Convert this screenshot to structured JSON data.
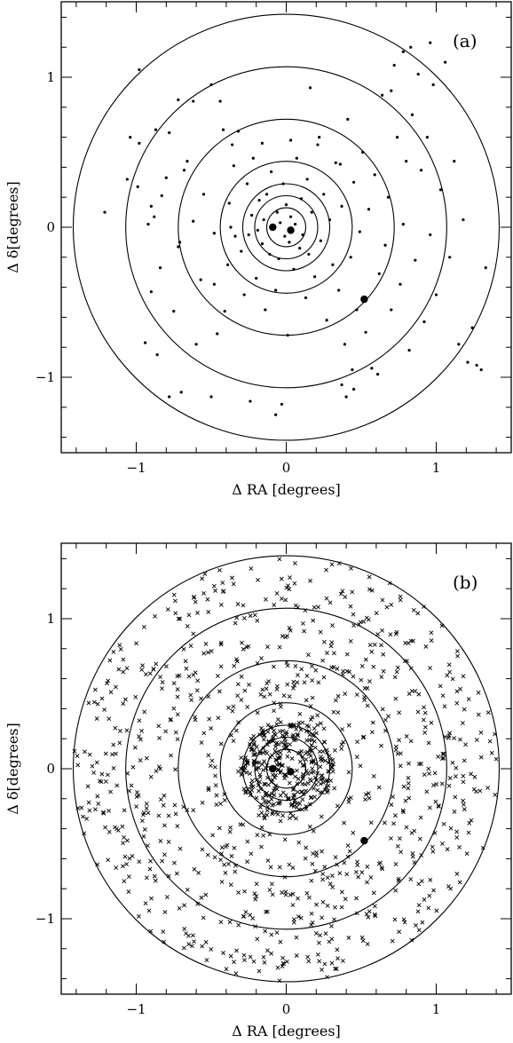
{
  "chart_data": [
    {
      "type": "scatter",
      "panel_label": "(a)",
      "xlabel": "Δ RA [degrees]",
      "ylabel": "Δ δ[degrees]",
      "xlim": [
        -1.5,
        1.5
      ],
      "ylim": [
        -1.5,
        1.5
      ],
      "xticks": [
        -1,
        0,
        1
      ],
      "yticks": [
        -1,
        0,
        1
      ],
      "xtick_labels": [
        "−1",
        "0",
        "1"
      ],
      "ytick_labels": [
        "−1",
        "0",
        "1"
      ],
      "grid": false,
      "marker": "dot",
      "circle_radii": [
        0.13,
        0.21,
        0.29,
        0.44,
        0.72,
        1.07,
        1.42
      ],
      "highlight_points": [
        [
          -0.09,
          0.0
        ],
        [
          0.03,
          -0.02
        ],
        [
          0.52,
          -0.48
        ]
      ],
      "points": [
        [
          -1.21,
          0.1
        ],
        [
          -1.06,
          0.32
        ],
        [
          -1.04,
          0.6
        ],
        [
          -0.99,
          0.27
        ],
        [
          -0.98,
          0.56
        ],
        [
          -0.98,
          1.05
        ],
        [
          -0.94,
          -0.77
        ],
        [
          -0.92,
          0.02
        ],
        [
          -0.9,
          -0.43
        ],
        [
          -0.9,
          0.14
        ],
        [
          -0.88,
          0.07
        ],
        [
          -0.87,
          0.65
        ],
        [
          -0.86,
          -0.85
        ],
        [
          -0.84,
          -0.27
        ],
        [
          -0.83,
          0.21
        ],
        [
          -0.8,
          0.33
        ],
        [
          -0.78,
          0.63
        ],
        [
          -0.75,
          -0.56
        ],
        [
          -0.72,
          -0.13
        ],
        [
          -0.71,
          -0.1
        ],
        [
          -0.7,
          -1.1
        ],
        [
          -0.68,
          0.38
        ],
        [
          -0.66,
          0.44
        ],
        [
          -0.62,
          0.04
        ],
        [
          -0.6,
          -0.78
        ],
        [
          -0.57,
          -0.35
        ],
        [
          -0.55,
          0.22
        ],
        [
          -0.5,
          -1.13
        ],
        [
          -0.48,
          -0.38
        ],
        [
          -0.46,
          -0.71
        ],
        [
          -0.44,
          0.84
        ],
        [
          -0.42,
          0.65
        ],
        [
          -0.41,
          -0.56
        ],
        [
          -0.39,
          -0.25
        ],
        [
          -0.38,
          0.16
        ],
        [
          -0.37,
          0.0
        ],
        [
          -0.35,
          0.41
        ],
        [
          -0.34,
          -0.06
        ],
        [
          -0.32,
          0.64
        ],
        [
          -0.3,
          -0.16
        ],
        [
          -0.28,
          -0.45
        ],
        [
          -0.26,
          0.29
        ],
        [
          -0.25,
          -0.05
        ],
        [
          -0.23,
          0.08
        ],
        [
          -0.22,
          0.46
        ],
        [
          -0.2,
          -0.34
        ],
        [
          -0.19,
          -0.02
        ],
        [
          -0.18,
          0.18
        ],
        [
          -0.16,
          -0.11
        ],
        [
          -0.15,
          0.05
        ],
        [
          -0.14,
          -0.55
        ],
        [
          -0.13,
          0.22
        ],
        [
          -0.11,
          -0.18
        ],
        [
          -0.1,
          0.37
        ],
        [
          -0.09,
          -0.01
        ],
        [
          -0.07,
          -0.42
        ],
        [
          -0.06,
          0.1
        ],
        [
          -0.05,
          -0.21
        ],
        [
          -0.04,
          0.03
        ],
        [
          -0.02,
          0.29
        ],
        [
          -0.01,
          -0.06
        ],
        [
          0.0,
          0.15
        ],
        [
          0.01,
          -0.72
        ],
        [
          0.02,
          -0.1
        ],
        [
          0.03,
          0.07
        ],
        [
          0.05,
          -0.28
        ],
        [
          0.06,
          0.02
        ],
        [
          0.07,
          0.46
        ],
        [
          0.09,
          -0.14
        ],
        [
          0.1,
          0.19
        ],
        [
          0.11,
          -0.05
        ],
        [
          0.13,
          -0.47
        ],
        [
          0.14,
          0.32
        ],
        [
          0.15,
          -0.18
        ],
        [
          0.17,
          0.1
        ],
        [
          0.19,
          -0.33
        ],
        [
          0.21,
          0.55
        ],
        [
          0.23,
          -0.09
        ],
        [
          0.25,
          0.22
        ],
        [
          0.27,
          -0.62
        ],
        [
          0.29,
          0.05
        ],
        [
          0.31,
          -0.25
        ],
        [
          0.33,
          0.43
        ],
        [
          0.35,
          -0.42
        ],
        [
          0.37,
          0.14
        ],
        [
          0.39,
          -0.78
        ],
        [
          0.41,
          0.72
        ],
        [
          0.43,
          -0.2
        ],
        [
          0.45,
          0.3
        ],
        [
          0.47,
          -0.55
        ],
        [
          0.49,
          -0.03
        ],
        [
          0.51,
          0.5
        ],
        [
          0.53,
          -0.7
        ],
        [
          0.55,
          0.12
        ],
        [
          0.57,
          -0.94
        ],
        [
          0.59,
          0.35
        ],
        [
          0.62,
          -0.31
        ],
        [
          0.64,
          0.88
        ],
        [
          0.66,
          -0.12
        ],
        [
          0.68,
          0.2
        ],
        [
          0.7,
          -0.55
        ],
        [
          0.72,
          1.08
        ],
        [
          0.74,
          0.6
        ],
        [
          0.76,
          -0.38
        ],
        [
          0.78,
          0.02
        ],
        [
          0.8,
          0.44
        ],
        [
          0.82,
          -0.82
        ],
        [
          0.84,
          0.75
        ],
        [
          0.86,
          -0.22
        ],
        [
          0.88,
          1.02
        ],
        [
          0.9,
          0.38
        ],
        [
          0.92,
          -0.63
        ],
        [
          0.94,
          0.6
        ],
        [
          0.96,
          -0.05
        ],
        [
          0.98,
          0.95
        ],
        [
          1.0,
          -0.45
        ],
        [
          1.03,
          0.25
        ],
        [
          1.06,
          1.1
        ],
        [
          1.09,
          -0.2
        ],
        [
          1.12,
          0.44
        ],
        [
          1.15,
          -0.78
        ],
        [
          1.18,
          0.05
        ],
        [
          1.21,
          -0.9
        ],
        [
          1.24,
          -0.67
        ],
        [
          1.27,
          -0.92
        ],
        [
          1.3,
          -0.95
        ],
        [
          1.33,
          -0.27
        ],
        [
          -0.78,
          -1.13
        ],
        [
          0.45,
          -1.08
        ],
        [
          0.37,
          -1.05
        ],
        [
          -0.03,
          -1.18
        ],
        [
          -0.07,
          -1.25
        ],
        [
          -0.24,
          -1.16
        ],
        [
          0.61,
          -0.98
        ],
        [
          0.4,
          -1.13
        ],
        [
          -0.62,
          0.84
        ],
        [
          -0.5,
          0.95
        ],
        [
          -0.72,
          0.85
        ],
        [
          -0.16,
          0.56
        ],
        [
          0.22,
          0.6
        ],
        [
          0.36,
          0.42
        ],
        [
          0.03,
          0.58
        ],
        [
          -0.36,
          0.55
        ],
        [
          0.16,
          0.93
        ],
        [
          0.44,
          -0.95
        ],
        [
          0.83,
          1.2
        ],
        [
          0.96,
          1.23
        ],
        [
          0.78,
          1.17
        ],
        [
          0.7,
          0.91
        ],
        [
          -0.48,
          -0.04
        ]
      ]
    },
    {
      "type": "scatter",
      "panel_label": "(b)",
      "xlabel": "Δ RA [degrees]",
      "ylabel": "Δ δ[degrees]",
      "xlim": [
        -1.5,
        1.5
      ],
      "ylim": [
        -1.5,
        1.5
      ],
      "xticks": [
        -1,
        0,
        1
      ],
      "yticks": [
        -1,
        0,
        1
      ],
      "xtick_labels": [
        "−1",
        "0",
        "1"
      ],
      "ytick_labels": [
        "−1",
        "0",
        "1"
      ],
      "grid": false,
      "marker": "cross",
      "circle_radii": [
        0.13,
        0.21,
        0.29,
        0.44,
        0.72,
        1.07,
        1.42
      ],
      "highlight_points": [
        [
          -0.09,
          0.0
        ],
        [
          0.03,
          -0.02
        ],
        [
          0.52,
          -0.48
        ]
      ],
      "point_count_estimate": 1200,
      "point_distribution": "uniform-disk-with-central-concentration",
      "max_radius": 1.42
    }
  ]
}
